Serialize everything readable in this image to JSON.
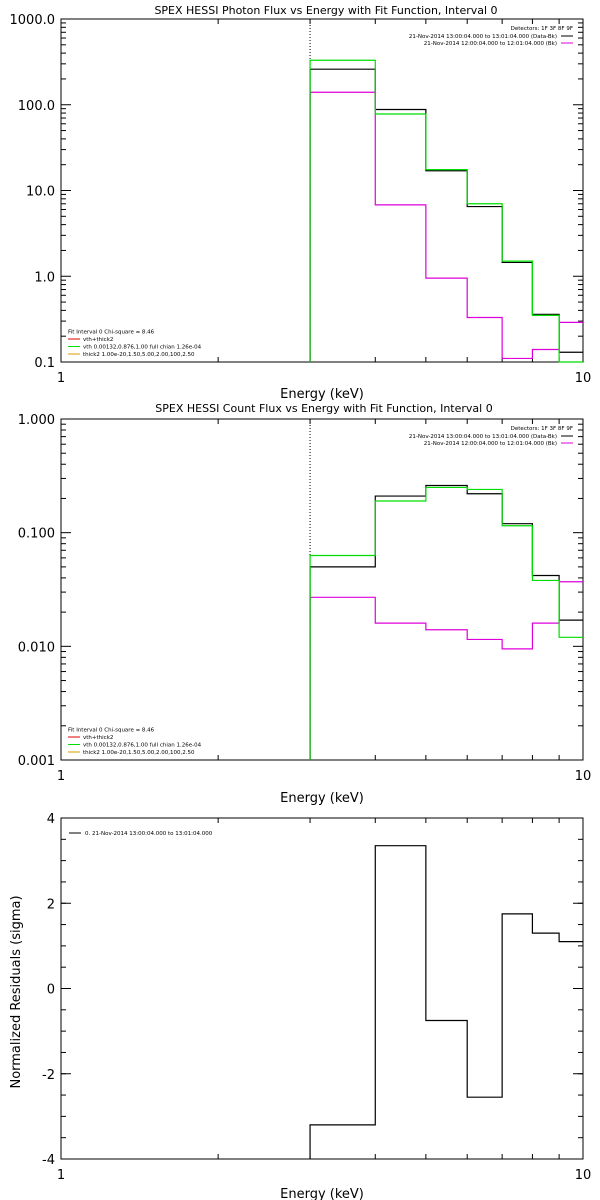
{
  "colors": {
    "black": "#000000",
    "green": "#00dd00",
    "magenta": "#dd00dd",
    "orange": "#dd9900",
    "red": "#dd0000"
  },
  "chart_data": [
    {
      "type": "line",
      "title": "SPEX HESSI Photon Flux vs Energy with Fit Function, Interval 0",
      "xlabel": "Energy (keV)",
      "ylabel": "",
      "xscale": "log",
      "yscale": "log",
      "xlim": [
        1,
        10
      ],
      "ylim": [
        0.1,
        1000
      ],
      "xticks": [
        "1",
        "10"
      ],
      "yticks": [
        "0.1",
        "1.0",
        "10.0",
        "100.0",
        "1000.0"
      ],
      "legend_top_right": {
        "detectors": "Detectors: 1F 3F 8F 9F",
        "entries": [
          {
            "label": "21-Nov-2014 13:00:04.000 to 13:01:04.000 (Data-Bk)",
            "color": "#000000"
          },
          {
            "label": "21-Nov-2014 12:00:04.000 to 12:01:04.000 (Bk)",
            "color": "#dd00dd"
          }
        ]
      },
      "legend_bottom_left": [
        {
          "text": "Fit Interval 0   Chi-square = 8.46",
          "color": ""
        },
        {
          "text": "vth+thick2",
          "color": "#dd0000"
        },
        {
          "text": "vth 0.00132,0.876,1.00  full chian 1.26e-04",
          "color": "#00dd00"
        },
        {
          "text": "thick2 1.00e-20,1.50,5.00,2.00,100,2.50",
          "color": "#dd9900"
        }
      ],
      "vline_x": 3,
      "bin_edges": [
        3,
        4,
        5,
        6,
        7,
        8,
        9,
        10
      ],
      "series": [
        {
          "name": "Data-Bk",
          "color": "#000000",
          "values": [
            260,
            88,
            17,
            6.5,
            1.45,
            0.36,
            0.13
          ]
        },
        {
          "name": "Bk",
          "color": "#dd00dd",
          "values": [
            140,
            6.8,
            0.95,
            0.33,
            0.11,
            0.14,
            0.29
          ]
        },
        {
          "name": "vth",
          "color": "#00dd00",
          "values": [
            330,
            78,
            17.5,
            7.0,
            1.5,
            0.35,
            0.1
          ]
        }
      ]
    },
    {
      "type": "line",
      "title": "SPEX HESSI Count Flux vs Energy with Fit Function, Interval 0",
      "xlabel": "Energy (keV)",
      "ylabel": "",
      "xscale": "log",
      "yscale": "log",
      "xlim": [
        1,
        10
      ],
      "ylim": [
        0.001,
        1
      ],
      "xticks": [
        "1",
        "10"
      ],
      "yticks": [
        "0.001",
        "0.010",
        "0.100",
        "1.000"
      ],
      "legend_top_right": {
        "detectors": "Detectors: 1F 3F 8F 9F",
        "entries": [
          {
            "label": "21-Nov-2014 13:00:04.000 to 13:01:04.000 (Data-Bk)",
            "color": "#000000"
          },
          {
            "label": "21-Nov-2014 12:00:04.000 to 12:01:04.000 (Bk)",
            "color": "#dd00dd"
          }
        ]
      },
      "legend_bottom_left": [
        {
          "text": "Fit Interval 0   Chi-square = 8.46",
          "color": ""
        },
        {
          "text": "vth+thick2",
          "color": "#dd0000"
        },
        {
          "text": "vth 0.00132,0.876,1.00  full chian 1.26e-04",
          "color": "#00dd00"
        },
        {
          "text": "thick2 1.00e-20,1.50,5.00,2.00,100,2.50",
          "color": "#dd9900"
        }
      ],
      "vline_x": 3,
      "bin_edges": [
        3,
        4,
        5,
        6,
        7,
        8,
        9,
        10
      ],
      "series": [
        {
          "name": "Data-Bk",
          "color": "#000000",
          "values": [
            0.05,
            0.21,
            0.26,
            0.22,
            0.12,
            0.042,
            0.017
          ]
        },
        {
          "name": "Bk",
          "color": "#dd00dd",
          "values": [
            0.027,
            0.016,
            0.014,
            0.0115,
            0.0095,
            0.016,
            0.037
          ]
        },
        {
          "name": "vth",
          "color": "#00dd00",
          "values": [
            0.063,
            0.19,
            0.25,
            0.24,
            0.115,
            0.038,
            0.012
          ]
        }
      ]
    },
    {
      "type": "line",
      "title": "",
      "xlabel": "Energy (keV)",
      "ylabel": "Normalized Residuals (sigma)",
      "xscale": "log",
      "yscale": "linear",
      "xlim": [
        1,
        10
      ],
      "ylim": [
        -4,
        4
      ],
      "xticks": [
        "1",
        "10"
      ],
      "yticks": [
        "-4",
        "-2",
        "0",
        "2",
        "4"
      ],
      "legend": "0. 21-Nov-2014 13:00:04.000 to 13:01:04.000",
      "bin_edges": [
        3,
        4,
        5,
        6,
        7,
        8,
        9,
        10
      ],
      "series": [
        {
          "name": "",
          "color": "#000000",
          "values": [
            -3.2,
            3.35,
            -0.75,
            -2.55,
            1.75,
            1.3,
            1.1
          ]
        }
      ]
    }
  ]
}
